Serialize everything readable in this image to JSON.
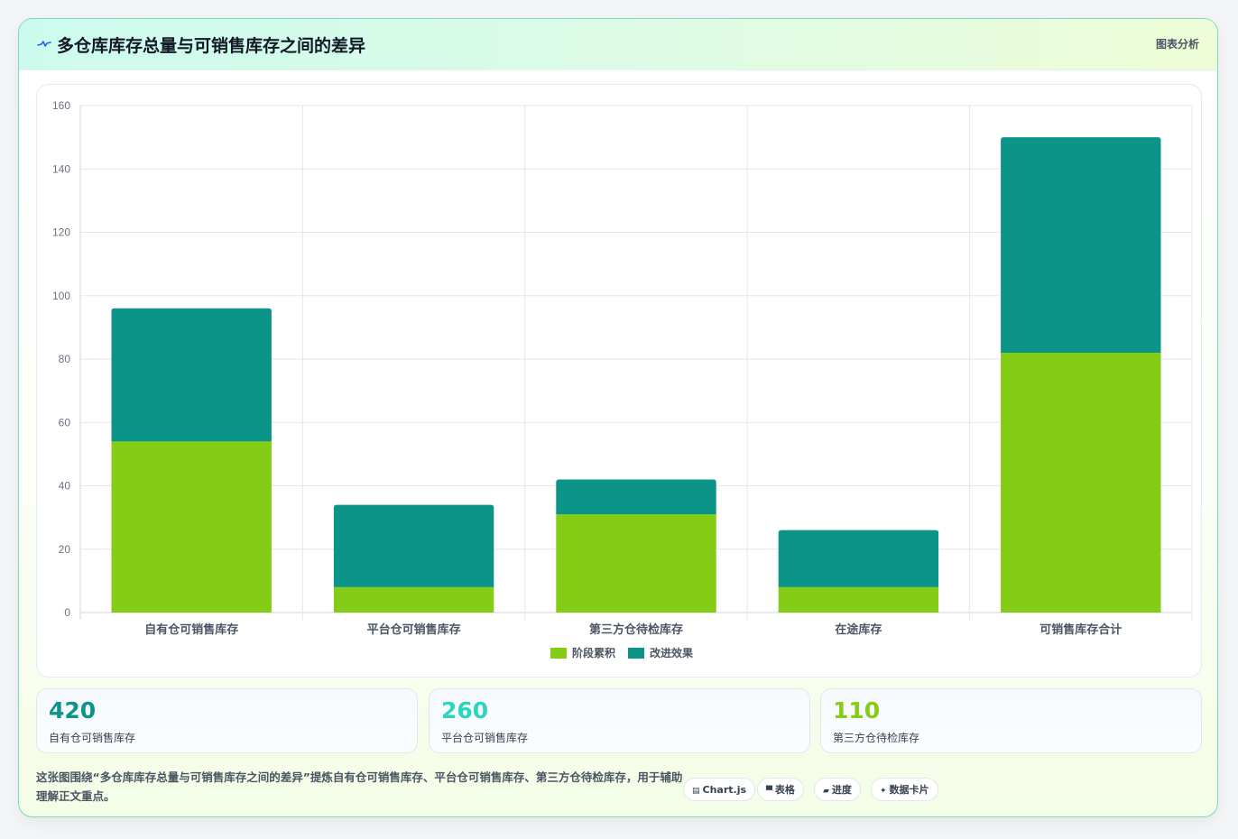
{
  "header": {
    "title": "多仓库库存总量与可销售库存之间的差异",
    "tag": "图表分析",
    "logo_icon": "pulse-line-icon"
  },
  "colors": {
    "series1": "#84cc16",
    "series2": "#0d9488",
    "stat1": "#0d9488",
    "stat2": "#2dd4bf",
    "stat3": "#84cc16"
  },
  "chart_data": {
    "type": "bar",
    "stacked": true,
    "categories": [
      "自有仓可销售库存",
      "平台仓可销售库存",
      "第三方仓待检库存",
      "在途库存",
      "可销售库存合计"
    ],
    "series": [
      {
        "name": "阶段累积",
        "values": [
          54,
          8,
          31,
          8,
          82
        ]
      },
      {
        "name": "改进效果",
        "values": [
          42,
          26,
          11,
          18,
          68
        ]
      }
    ],
    "ylim": [
      0,
      160
    ],
    "yticks": [
      0,
      20,
      40,
      60,
      80,
      100,
      120,
      140,
      160
    ],
    "grid": true,
    "legend_position": "bottom"
  },
  "stats": [
    {
      "value": "420",
      "label": "自有仓可销售库存"
    },
    {
      "value": "260",
      "label": "平台仓可销售库存"
    },
    {
      "value": "110",
      "label": "第三方仓待检库存"
    }
  ],
  "footer": {
    "description": "这张图围绕“多仓库库存总量与可销售库存之间的差异”提炼自有仓可销售库存、平台仓可销售库存、第三方仓待检库存，用于辅助理解正文重点。",
    "chips": [
      {
        "icon": "▤",
        "icon_name": "chart-icon",
        "label": "Chart.js"
      },
      {
        "icon": "▀",
        "icon_name": "table-icon",
        "label": "表格"
      },
      {
        "icon": "▰",
        "icon_name": "progress-icon",
        "label": "进度"
      },
      {
        "icon": "✦",
        "icon_name": "sparkle-icon",
        "label": "数据卡片"
      }
    ]
  }
}
